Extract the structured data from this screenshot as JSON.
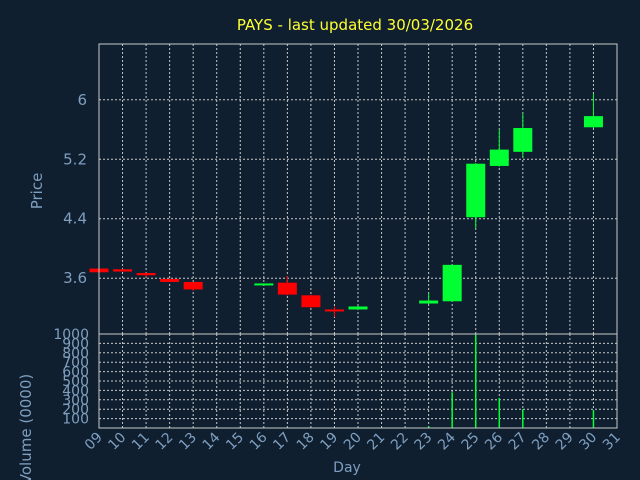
{
  "title": "PAYS - last updated 30/03/2026",
  "colors": {
    "background": "#0f1f30",
    "title": "#ffff33",
    "axis_text": "#7f9fbf",
    "grid": "#c8c8c8",
    "up": "#00ff33",
    "down": "#ff0000"
  },
  "chart_data": [
    {
      "type": "candlestick",
      "ylabel": "Price",
      "ylim": [
        2.85,
        6.75
      ],
      "yticks": [
        "3.6",
        "4.4",
        "5.2",
        "6"
      ],
      "grid": true,
      "candles": [
        {
          "day": "09",
          "open": 3.73,
          "high": 3.74,
          "low": 3.71,
          "close": 3.68
        },
        {
          "day": "10",
          "open": 3.72,
          "high": 3.72,
          "low": 3.69,
          "close": 3.69
        },
        {
          "day": "11",
          "open": 3.67,
          "high": 3.67,
          "low": 3.62,
          "close": 3.64
        },
        {
          "day": "12",
          "open": 3.59,
          "high": 3.6,
          "low": 3.55,
          "close": 3.55
        },
        {
          "day": "13",
          "open": 3.55,
          "high": 3.55,
          "low": 3.43,
          "close": 3.45
        },
        {
          "day": "16",
          "open": 3.51,
          "high": 3.53,
          "low": 3.5,
          "close": 3.53
        },
        {
          "day": "17",
          "open": 3.54,
          "high": 3.63,
          "low": 3.37,
          "close": 3.38
        },
        {
          "day": "18",
          "open": 3.37,
          "high": 3.38,
          "low": 3.2,
          "close": 3.21
        },
        {
          "day": "19",
          "open": 3.18,
          "high": 3.22,
          "low": 3.08,
          "close": 3.16
        },
        {
          "day": "20",
          "open": 3.18,
          "high": 3.23,
          "low": 3.18,
          "close": 3.22
        },
        {
          "day": "23",
          "open": 3.26,
          "high": 3.4,
          "low": 3.25,
          "close": 3.3
        },
        {
          "day": "24",
          "open": 3.29,
          "high": 3.78,
          "low": 3.29,
          "close": 3.78
        },
        {
          "day": "25",
          "open": 4.42,
          "high": 5.15,
          "low": 4.27,
          "close": 5.14
        },
        {
          "day": "26",
          "open": 5.11,
          "high": 5.6,
          "low": 5.1,
          "close": 5.33
        },
        {
          "day": "27",
          "open": 5.3,
          "high": 5.82,
          "low": 5.22,
          "close": 5.62
        },
        {
          "day": "30",
          "open": 5.63,
          "high": 6.08,
          "low": 5.62,
          "close": 5.78
        }
      ]
    },
    {
      "type": "bar",
      "xlabel": "Day",
      "ylabel": "Volume (0000)",
      "ylim": [
        0,
        1000
      ],
      "yticks": [
        "100",
        "200",
        "300",
        "400",
        "500",
        "600",
        "700",
        "800",
        "900",
        "1000"
      ],
      "categories": [
        "09",
        "10",
        "11",
        "12",
        "13",
        "14",
        "15",
        "16",
        "17",
        "18",
        "19",
        "20",
        "21",
        "22",
        "23",
        "24",
        "25",
        "26",
        "27",
        "28",
        "29",
        "30",
        "31"
      ],
      "volumes": [
        {
          "day": "09",
          "value": 0
        },
        {
          "day": "10",
          "value": 5
        },
        {
          "day": "11",
          "value": 5
        },
        {
          "day": "12",
          "value": 8
        },
        {
          "day": "13",
          "value": 8
        },
        {
          "day": "16",
          "value": 5
        },
        {
          "day": "17",
          "value": 8
        },
        {
          "day": "18",
          "value": 5
        },
        {
          "day": "19",
          "value": 5
        },
        {
          "day": "20",
          "value": 5
        },
        {
          "day": "23",
          "value": 20
        },
        {
          "day": "24",
          "value": 380
        },
        {
          "day": "25",
          "value": 990
        },
        {
          "day": "26",
          "value": 320
        },
        {
          "day": "27",
          "value": 200
        },
        {
          "day": "30",
          "value": 190
        }
      ]
    }
  ]
}
